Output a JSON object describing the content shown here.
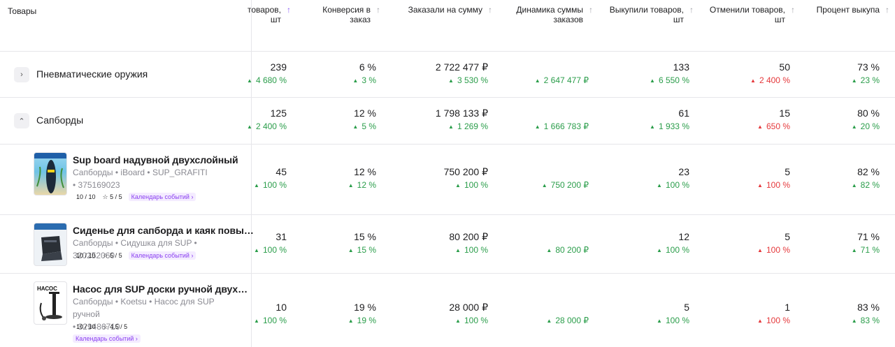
{
  "header": {
    "goods": "Товары",
    "cols": [
      {
        "line1": "товаров,",
        "line2": "шт",
        "active": true
      },
      {
        "line1": "Конверсия в",
        "line2": "заказ",
        "active": false
      },
      {
        "line1": "Заказали на сумму",
        "line2": "",
        "active": false
      },
      {
        "line1": "Динамика суммы",
        "line2": "заказов",
        "active": false
      },
      {
        "line1": "Выкупили товаров,",
        "line2": "шт",
        "active": false
      },
      {
        "line1": "Отменили товаров,",
        "line2": "шт",
        "active": false
      },
      {
        "line1": "Процент выкупа",
        "line2": "",
        "active": false
      }
    ]
  },
  "categories": [
    {
      "name": "Пневматические оружия",
      "expanded": false,
      "ordered": "239",
      "ordered_d": "4 680 %",
      "conv": "6 %",
      "conv_d": "3 %",
      "sum": "2 722 477 ₽",
      "sum_d": "3 530 %",
      "dyn_d": "2 647 477 ₽",
      "bought": "133",
      "bought_d": "6 550 %",
      "cancel": "50",
      "cancel_d": "2 400 %",
      "pct": "73 %",
      "pct_d": "23 %"
    },
    {
      "name": "Сапборды",
      "expanded": true,
      "ordered": "125",
      "ordered_d": "2 400 %",
      "conv": "12 %",
      "conv_d": "5 %",
      "sum": "1 798 133 ₽",
      "sum_d": "1 269 %",
      "dyn_d": "1 666 783 ₽",
      "bought": "61",
      "bought_d": "1 933 %",
      "cancel": "15",
      "cancel_d": "650 %",
      "pct": "80 %",
      "pct_d": "20 %"
    }
  ],
  "products": [
    {
      "name": "Sup board надувной двухслойный",
      "meta1": "Сапборды • iBoard • SUP_GRAFITI",
      "meta2": "• 375169023",
      "score": "10 / 10",
      "rating": "5 / 5",
      "calendar": "Календарь событий",
      "ordered": "45",
      "ordered_d": "100 %",
      "conv": "12 %",
      "conv_d": "12 %",
      "sum": "750 200 ₽",
      "sum_d": "100 %",
      "dyn_d": "750 200 ₽",
      "bought": "23",
      "bought_d": "100 %",
      "cancel": "5",
      "cancel_d": "100 %",
      "pct": "82 %",
      "pct_d": "82 %"
    },
    {
      "name": "Сиденье для сапборда и каяк повы…",
      "meta1": "Сапборды • Сидушка для SUP • 320252060",
      "meta2": "",
      "score": "10 / 10",
      "rating": "5 / 5",
      "calendar": "Календарь событий",
      "ordered": "31",
      "ordered_d": "100 %",
      "conv": "15 %",
      "conv_d": "15 %",
      "sum": "80 200 ₽",
      "sum_d": "100 %",
      "dyn_d": "80 200 ₽",
      "bought": "12",
      "bought_d": "100 %",
      "cancel": "5",
      "cancel_d": "100 %",
      "pct": "71 %",
      "pct_d": "71 %"
    },
    {
      "name": "Насос для SUP доски ручной двух…",
      "meta1": "Сапборды • Koetsu • Насос для SUP ручной",
      "meta2": "• 329486710",
      "score": "10 / 10",
      "rating": "4.5 / 5",
      "calendar": "Календарь событий",
      "thumb_text": "НАСОС",
      "ordered": "10",
      "ordered_d": "100 %",
      "conv": "19 %",
      "conv_d": "19 %",
      "sum": "28 000 ₽",
      "sum_d": "100 %",
      "dyn_d": "28 000 ₽",
      "bought": "5",
      "bought_d": "100 %",
      "cancel": "1",
      "cancel_d": "100 %",
      "pct": "83 %",
      "pct_d": "83 %"
    }
  ],
  "colors": {
    "up": "#2a9d4a",
    "down": "#e5383b",
    "accent": "#8a5cf6"
  }
}
